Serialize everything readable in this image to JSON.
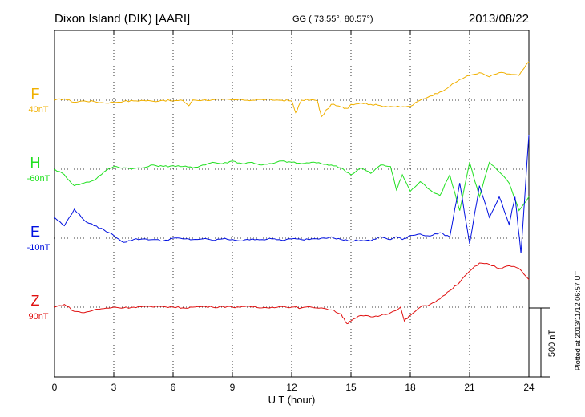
{
  "chart_data": {
    "type": "line",
    "title": "Dixon Island (DIK)  [AARI]",
    "coords": "GG ( 73.55°,  80.57°)",
    "date": "2013/08/22",
    "xlabel": "U T (hour)",
    "xlim": [
      0,
      24
    ],
    "xticks": [
      "0",
      "3",
      "6",
      "9",
      "12",
      "15",
      "18",
      "21",
      "24"
    ],
    "scale_label": "500 nT",
    "plotted_label": "Plotted at 2013/11/12 06:57 UT",
    "grid": true,
    "series": [
      {
        "name": "F",
        "baseline_label": "40nT",
        "color": "#f0b000",
        "x": [
          0,
          0.5,
          1,
          1.5,
          2,
          2.5,
          3,
          3.5,
          4,
          4.5,
          5,
          5.5,
          6,
          6.5,
          6.8,
          7,
          7.5,
          8,
          8.5,
          9,
          9.5,
          10,
          10.5,
          11,
          11.5,
          12,
          12.2,
          12.5,
          13,
          13.3,
          13.5,
          14,
          14.5,
          14.8,
          15,
          15.5,
          16,
          16.5,
          17,
          17.5,
          18,
          18.5,
          19,
          19.5,
          20,
          20.5,
          21,
          21.5,
          22,
          22.5,
          23,
          23.5,
          24
        ],
        "y": [
          0,
          10,
          -15,
          -5,
          -10,
          -20,
          -15,
          -8,
          -5,
          -2,
          -8,
          0,
          -5,
          -3,
          -40,
          2,
          0,
          3,
          5,
          2,
          3,
          0,
          5,
          2,
          0,
          -5,
          -90,
          0,
          3,
          -5,
          -120,
          -30,
          -50,
          -60,
          -30,
          -20,
          -30,
          -40,
          -45,
          -50,
          -45,
          0,
          30,
          60,
          100,
          150,
          180,
          200,
          170,
          200,
          190,
          180,
          280
        ]
      },
      {
        "name": "H",
        "baseline_label": "-60nT",
        "color": "#20e020",
        "x": [
          0,
          0.5,
          1,
          1.5,
          2,
          2.5,
          3,
          3.5,
          4,
          4.5,
          5,
          5.5,
          6,
          6.5,
          7,
          7.5,
          8,
          8.5,
          9,
          9.5,
          10,
          10.5,
          11,
          11.5,
          12,
          12.5,
          13,
          13.5,
          14,
          14.5,
          15,
          15.5,
          16,
          16.5,
          17,
          17.3,
          17.6,
          18,
          18.5,
          19,
          19.5,
          20,
          20.5,
          21,
          21.5,
          22,
          22.5,
          23,
          23.5,
          24
        ],
        "y": [
          0,
          -40,
          -120,
          -100,
          -80,
          -20,
          20,
          10,
          5,
          10,
          30,
          20,
          25,
          20,
          10,
          30,
          50,
          40,
          60,
          40,
          50,
          30,
          40,
          60,
          50,
          40,
          50,
          40,
          30,
          10,
          -40,
          10,
          -30,
          30,
          20,
          -150,
          -40,
          -160,
          -90,
          -150,
          -190,
          -40,
          -300,
          50,
          -200,
          50,
          -20,
          -100,
          -300,
          -200
        ]
      },
      {
        "name": "E",
        "baseline_label": "-10nT",
        "color": "#0010e0",
        "x": [
          0,
          0.5,
          1,
          1.5,
          2,
          2.5,
          3,
          3.5,
          4,
          4.5,
          5,
          5.5,
          6,
          6.5,
          7,
          7.5,
          8,
          8.5,
          9,
          9.5,
          10,
          10.5,
          11,
          11.5,
          12,
          12.5,
          13,
          13.5,
          14,
          14.5,
          15,
          15.5,
          16,
          16.5,
          17,
          17.3,
          17.6,
          18,
          18.5,
          19,
          19.5,
          20,
          20.5,
          21,
          21.5,
          22,
          22.5,
          23,
          23.3,
          23.6,
          24
        ],
        "y": [
          150,
          90,
          210,
          130,
          90,
          60,
          20,
          -30,
          -10,
          -5,
          -10,
          -20,
          0,
          -5,
          -10,
          -5,
          -15,
          -5,
          -10,
          -20,
          -5,
          -10,
          -5,
          -15,
          -5,
          -10,
          -5,
          0,
          10,
          -10,
          -20,
          -15,
          -20,
          10,
          -10,
          10,
          -10,
          20,
          30,
          15,
          40,
          10,
          400,
          -40,
          380,
          150,
          300,
          100,
          300,
          -110,
          750
        ]
      },
      {
        "name": "Z",
        "baseline_label": "90nT",
        "color": "#e01010",
        "x": [
          0,
          0.5,
          1,
          1.5,
          2,
          2.5,
          3,
          3.5,
          4,
          4.5,
          5,
          5.5,
          6,
          6.5,
          7,
          7.5,
          8,
          8.5,
          9,
          9.5,
          10,
          10.5,
          11,
          11.5,
          12,
          12.5,
          13,
          13.5,
          14,
          14.5,
          14.8,
          15,
          15.5,
          16,
          16.5,
          17,
          17.5,
          17.7,
          18,
          18.5,
          19,
          19.5,
          20,
          20.5,
          21,
          21.5,
          22,
          22.5,
          23,
          23.5,
          24
        ],
        "y": [
          0,
          20,
          -30,
          -40,
          -20,
          -10,
          0,
          -5,
          0,
          5,
          0,
          5,
          0,
          -5,
          0,
          5,
          0,
          5,
          0,
          5,
          0,
          -5,
          0,
          5,
          0,
          -5,
          0,
          -5,
          -20,
          -50,
          -120,
          -100,
          -60,
          -70,
          -60,
          -40,
          0,
          -100,
          -60,
          0,
          20,
          60,
          120,
          180,
          260,
          320,
          310,
          280,
          300,
          280,
          200
        ]
      }
    ]
  }
}
